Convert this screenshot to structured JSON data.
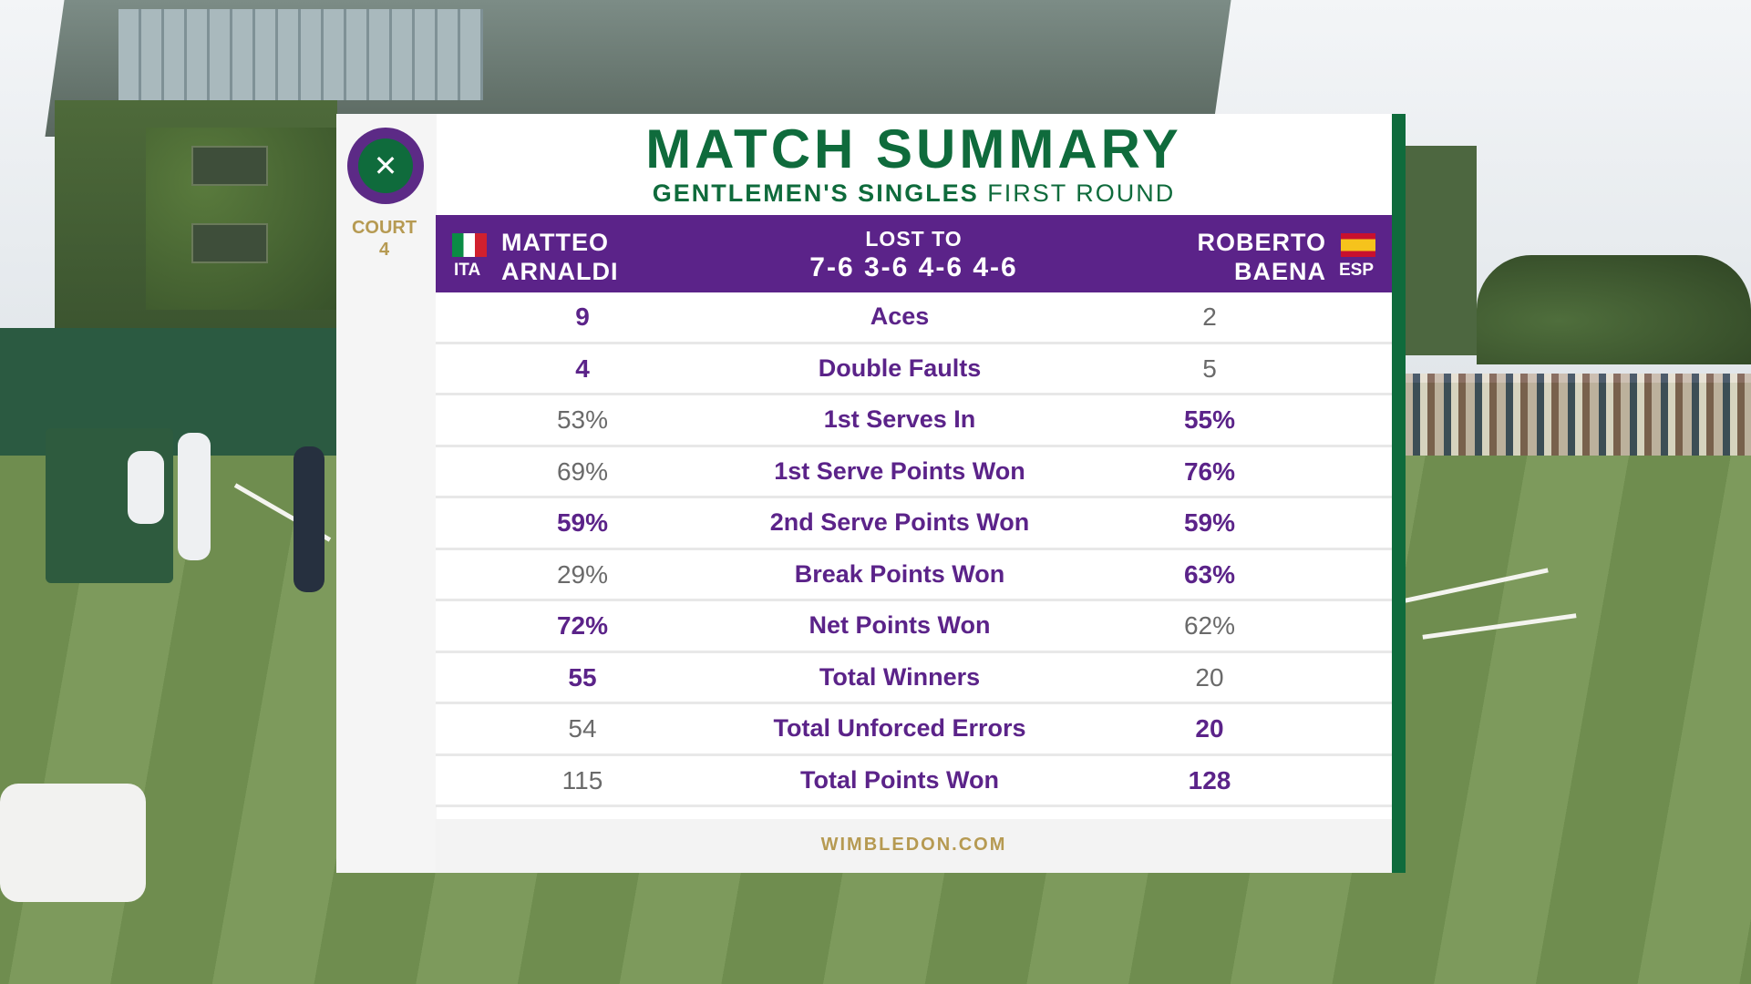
{
  "event": {
    "court_label": "COURT",
    "court_number": "4"
  },
  "card": {
    "title": "MATCH SUMMARY",
    "subtitle_bold": "GENTLEMEN'S SINGLES",
    "subtitle_rest": "FIRST ROUND"
  },
  "players": {
    "left": {
      "first": "MATTEO",
      "last": "ARNALDI",
      "country": "ITA"
    },
    "right": {
      "first": "ROBERTO",
      "last": "BAENA",
      "country": "ESP"
    }
  },
  "result": {
    "label": "LOST TO",
    "score": "7-6 3-6 4-6 4-6"
  },
  "stats": [
    {
      "label": "Aces",
      "left": "9",
      "right": "2",
      "leader": "left"
    },
    {
      "label": "Double Faults",
      "left": "4",
      "right": "5",
      "leader": "left"
    },
    {
      "label": "1st Serves In",
      "left": "53%",
      "right": "55%",
      "leader": "right"
    },
    {
      "label": "1st Serve Points Won",
      "left": "69%",
      "right": "76%",
      "leader": "right"
    },
    {
      "label": "2nd Serve Points Won",
      "left": "59%",
      "right": "59%",
      "leader": "both"
    },
    {
      "label": "Break Points Won",
      "left": "29%",
      "right": "63%",
      "leader": "right"
    },
    {
      "label": "Net Points Won",
      "left": "72%",
      "right": "62%",
      "leader": "left"
    },
    {
      "label": "Total Winners",
      "left": "55",
      "right": "20",
      "leader": "left"
    },
    {
      "label": "Total Unforced Errors",
      "left": "54",
      "right": "20",
      "leader": "right"
    },
    {
      "label": "Total Points Won",
      "left": "115",
      "right": "128",
      "leader": "right"
    }
  ],
  "footer": "WIMBLEDON.COM",
  "colors": {
    "purple": "#5b2389",
    "green": "#0f6b3c",
    "gold": "#b69a52",
    "muted": "#6a6a6a"
  }
}
